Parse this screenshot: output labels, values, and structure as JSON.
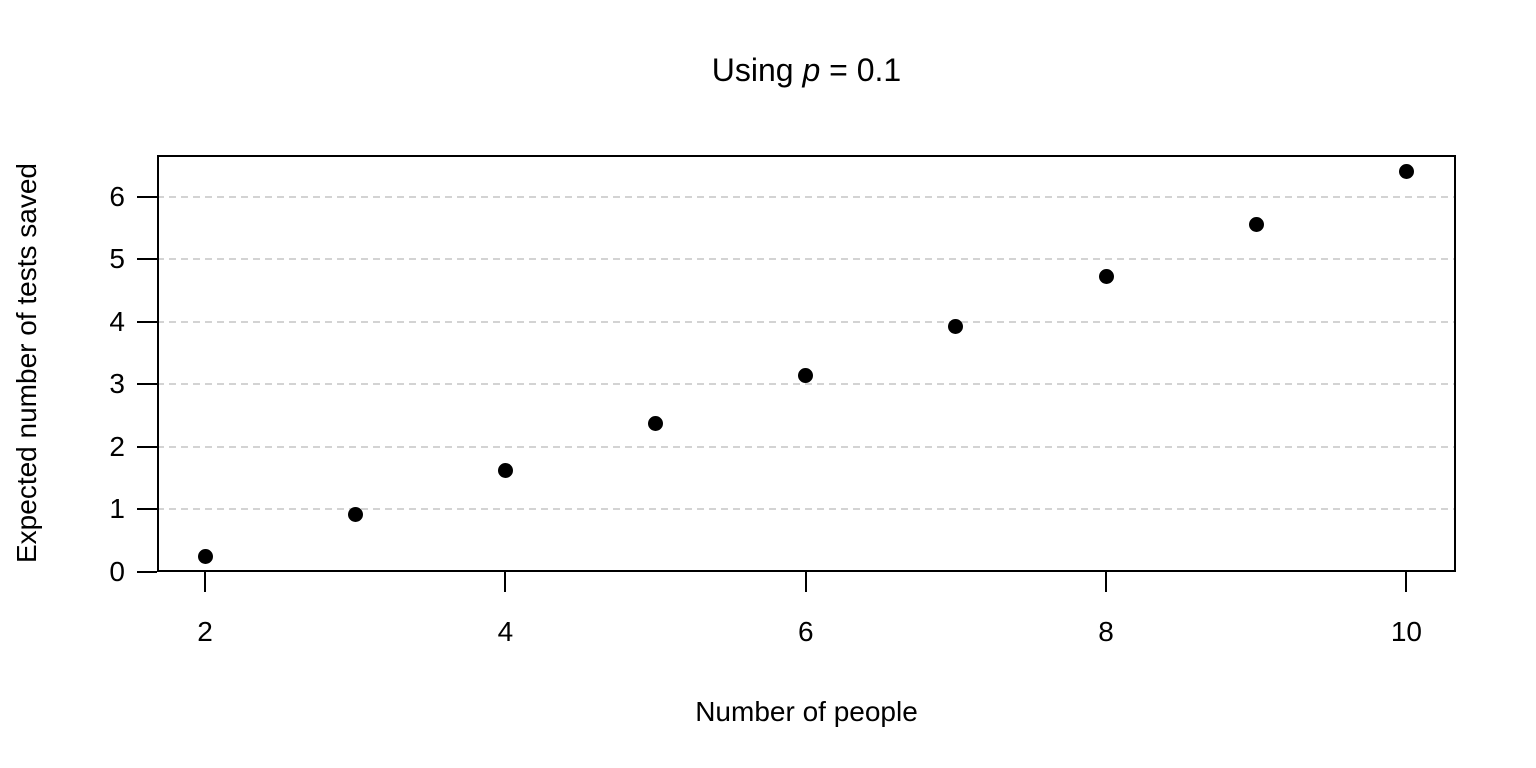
{
  "title": {
    "prefix": "Using ",
    "param": "p",
    "suffix": " = 0.1"
  },
  "chart_data": {
    "type": "scatter",
    "title": "Using p = 0.1",
    "xlabel": "Number of people",
    "ylabel": "Expected number of tests saved",
    "x": [
      2,
      3,
      4,
      5,
      6,
      7,
      8,
      9,
      10
    ],
    "values": [
      0.25,
      0.92,
      1.63,
      2.37,
      3.14,
      3.92,
      4.73,
      5.56,
      6.4
    ],
    "xticks": [
      2,
      4,
      6,
      8,
      10
    ],
    "yticks": [
      0,
      1,
      2,
      3,
      4,
      5,
      6
    ],
    "xlim": [
      1.68,
      10.33
    ],
    "ylim": [
      0,
      6.67
    ],
    "grid": "horizontal-dashed",
    "legend": "none",
    "point_color": "#000000",
    "grid_color": "#d3d3d3",
    "frame_color": "#000000",
    "background_color": "#ffffff"
  }
}
